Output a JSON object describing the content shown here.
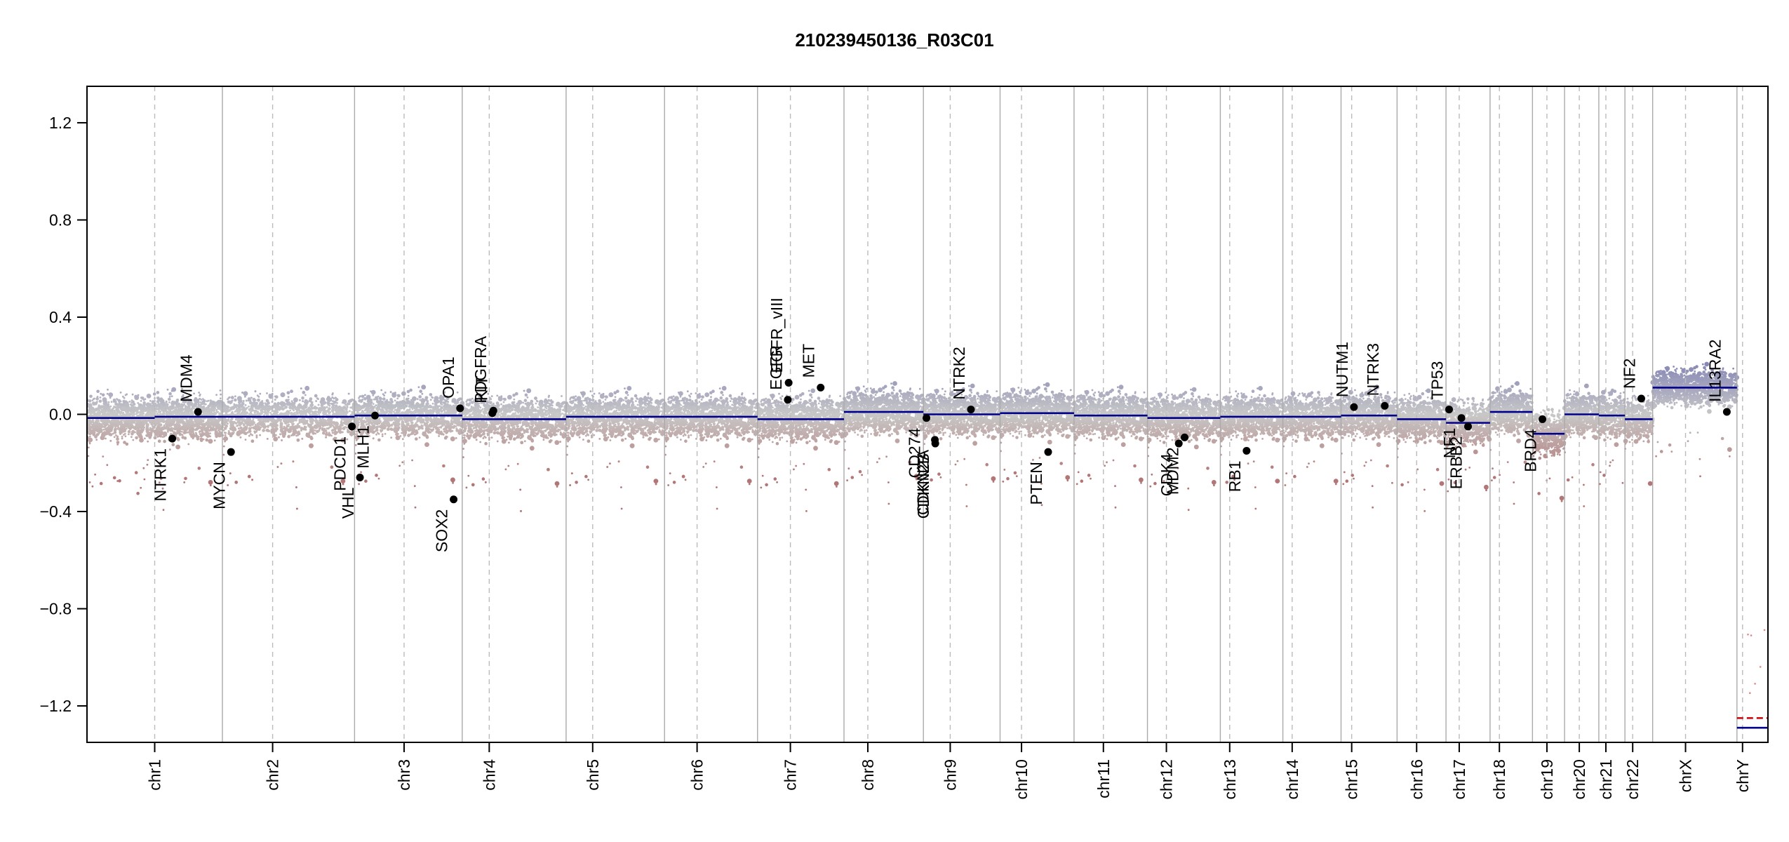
{
  "chart_data": {
    "type": "scatter",
    "title": "210239450136_R03C01",
    "xlabel": "",
    "ylabel": "",
    "ylim": [
      -1.35,
      1.35
    ],
    "y_ticks": [
      -1.2,
      -0.8,
      -0.4,
      0.0,
      0.4,
      0.8,
      1.2
    ],
    "y_tick_labels": [
      "−1.2",
      "−0.8",
      "−0.4",
      "0.0",
      "0.4",
      "0.8",
      "1.2"
    ],
    "grid": false,
    "chromosomes": [
      {
        "name": "chr1",
        "size": 249,
        "cent": 0.5
      },
      {
        "name": "chr2",
        "size": 243,
        "cent": 0.38
      },
      {
        "name": "chr3",
        "size": 198,
        "cent": 0.46
      },
      {
        "name": "chr4",
        "size": 191,
        "cent": 0.26
      },
      {
        "name": "chr5",
        "size": 181,
        "cent": 0.27
      },
      {
        "name": "chr6",
        "size": 171,
        "cent": 0.35
      },
      {
        "name": "chr7",
        "size": 159,
        "cent": 0.38
      },
      {
        "name": "chr8",
        "size": 146,
        "cent": 0.3
      },
      {
        "name": "chr9",
        "size": 141,
        "cent": 0.35
      },
      {
        "name": "chr10",
        "size": 136,
        "cent": 0.29
      },
      {
        "name": "chr11",
        "size": 135,
        "cent": 0.4
      },
      {
        "name": "chr12",
        "size": 134,
        "cent": 0.26
      },
      {
        "name": "chr13",
        "size": 115,
        "cent": 0.15
      },
      {
        "name": "chr14",
        "size": 107,
        "cent": 0.16
      },
      {
        "name": "chr15",
        "size": 103,
        "cent": 0.19
      },
      {
        "name": "chr16",
        "size": 90,
        "cent": 0.4
      },
      {
        "name": "chr17",
        "size": 81,
        "cent": 0.3
      },
      {
        "name": "chr18",
        "size": 78,
        "cent": 0.22
      },
      {
        "name": "chr19",
        "size": 59,
        "cent": 0.45
      },
      {
        "name": "chr20",
        "size": 63,
        "cent": 0.43
      },
      {
        "name": "chr21",
        "size": 48,
        "cent": 0.27
      },
      {
        "name": "chr22",
        "size": 51,
        "cent": 0.28
      },
      {
        "name": "chrX",
        "size": 155,
        "cent": 0.39
      },
      {
        "name": "chrY",
        "size": 57,
        "cent": 0.18
      }
    ],
    "segments": [
      {
        "chr": "chr1",
        "from": 0.0,
        "to": 0.5,
        "value": -0.015
      },
      {
        "chr": "chr1",
        "from": 0.5,
        "to": 1.0,
        "value": -0.01
      },
      {
        "chr": "chr2",
        "from": 0.0,
        "to": 1.0,
        "value": -0.01
      },
      {
        "chr": "chr3",
        "from": 0.0,
        "to": 1.0,
        "value": -0.005
      },
      {
        "chr": "chr4",
        "from": 0.0,
        "to": 1.0,
        "value": -0.02
      },
      {
        "chr": "chr5",
        "from": 0.0,
        "to": 1.0,
        "value": -0.01
      },
      {
        "chr": "chr6",
        "from": 0.0,
        "to": 1.0,
        "value": -0.01
      },
      {
        "chr": "chr7",
        "from": 0.0,
        "to": 1.0,
        "value": -0.02
      },
      {
        "chr": "chr8",
        "from": 0.0,
        "to": 1.0,
        "value": 0.01
      },
      {
        "chr": "chr9",
        "from": 0.0,
        "to": 1.0,
        "value": 0.0
      },
      {
        "chr": "chr10",
        "from": 0.0,
        "to": 1.0,
        "value": 0.005
      },
      {
        "chr": "chr11",
        "from": 0.0,
        "to": 1.0,
        "value": -0.005
      },
      {
        "chr": "chr12",
        "from": 0.0,
        "to": 1.0,
        "value": -0.015
      },
      {
        "chr": "chr13",
        "from": 0.0,
        "to": 1.0,
        "value": -0.01
      },
      {
        "chr": "chr14",
        "from": 0.0,
        "to": 1.0,
        "value": -0.01
      },
      {
        "chr": "chr15",
        "from": 0.0,
        "to": 1.0,
        "value": -0.005
      },
      {
        "chr": "chr16",
        "from": 0.0,
        "to": 1.0,
        "value": -0.02
      },
      {
        "chr": "chr17",
        "from": 0.0,
        "to": 1.0,
        "value": -0.035
      },
      {
        "chr": "chr18",
        "from": 0.0,
        "to": 1.0,
        "value": 0.01
      },
      {
        "chr": "chr19",
        "from": 0.0,
        "to": 1.0,
        "value": -0.08
      },
      {
        "chr": "chr20",
        "from": 0.0,
        "to": 1.0,
        "value": 0.0
      },
      {
        "chr": "chr21",
        "from": 0.0,
        "to": 1.0,
        "value": -0.005
      },
      {
        "chr": "chr22",
        "from": 0.0,
        "to": 1.0,
        "value": -0.02
      },
      {
        "chr": "chrX",
        "from": 0.0,
        "to": 1.0,
        "value": 0.11
      },
      {
        "chr": "chrY",
        "from": 0.0,
        "to": 1.0,
        "value": -1.29,
        "color": "#00008b"
      },
      {
        "chr": "chrY",
        "from": 0.0,
        "to": 1.0,
        "value": -1.25,
        "color": "#cc0000",
        "dashed": true
      }
    ],
    "genes": [
      {
        "name": "NTRK1",
        "chr": "chr1",
        "pos": 0.63,
        "value": -0.1,
        "side": "below"
      },
      {
        "name": "MDM4",
        "chr": "chr1",
        "pos": 0.82,
        "value": 0.01,
        "side": "above"
      },
      {
        "name": "MYCN",
        "chr": "chr2",
        "pos": 0.065,
        "value": -0.155,
        "side": "below"
      },
      {
        "name": "VHL",
        "chr": "chr3",
        "pos": 0.05,
        "value": -0.26,
        "side": "below"
      },
      {
        "name": "PDCD1",
        "chr": "chr2",
        "pos": 0.98,
        "value": -0.05,
        "side": "below"
      },
      {
        "name": "MLH1",
        "chr": "chr3",
        "pos": 0.19,
        "value": -0.005,
        "side": "below"
      },
      {
        "name": "SOX2",
        "chr": "chr3",
        "pos": 0.92,
        "value": -0.35,
        "side": "below"
      },
      {
        "name": "OPA1",
        "chr": "chr3",
        "pos": 0.98,
        "value": 0.025,
        "side": "above"
      },
      {
        "name": "PDGFRA",
        "chr": "chr4",
        "pos": 0.29,
        "value": 0.005,
        "side": "above"
      },
      {
        "name": "KIT",
        "chr": "chr4",
        "pos": 0.3,
        "value": 0.015,
        "side": "above"
      },
      {
        "name": "EGFR",
        "chr": "chr7",
        "pos": 0.35,
        "value": 0.06,
        "side": "above"
      },
      {
        "name": "EGFR_vIII",
        "chr": "chr7",
        "pos": 0.36,
        "value": 0.13,
        "side": "above"
      },
      {
        "name": "MET",
        "chr": "chr7",
        "pos": 0.73,
        "value": 0.11,
        "side": "above"
      },
      {
        "name": "CD274",
        "chr": "chr9",
        "pos": 0.04,
        "value": -0.015,
        "side": "below"
      },
      {
        "name": "CDKN2A",
        "chr": "chr9",
        "pos": 0.15,
        "value": -0.105,
        "side": "below"
      },
      {
        "name": "CDKN2B",
        "chr": "chr9",
        "pos": 0.155,
        "value": -0.12,
        "side": "below"
      },
      {
        "name": "NTRK2",
        "chr": "chr9",
        "pos": 0.62,
        "value": 0.02,
        "side": "above"
      },
      {
        "name": "PTEN",
        "chr": "chr10",
        "pos": 0.65,
        "value": -0.155,
        "side": "below"
      },
      {
        "name": "CDK4",
        "chr": "chr12",
        "pos": 0.43,
        "value": -0.12,
        "side": "below"
      },
      {
        "name": "MDM2",
        "chr": "chr12",
        "pos": 0.51,
        "value": -0.095,
        "side": "below"
      },
      {
        "name": "RB1",
        "chr": "chr13",
        "pos": 0.42,
        "value": -0.15,
        "side": "below"
      },
      {
        "name": "NUTM1",
        "chr": "chr15",
        "pos": 0.23,
        "value": 0.03,
        "side": "above"
      },
      {
        "name": "NTRK3",
        "chr": "chr15",
        "pos": 0.78,
        "value": 0.035,
        "side": "above"
      },
      {
        "name": "TP53",
        "chr": "chr17",
        "pos": 0.07,
        "value": 0.02,
        "side": "above"
      },
      {
        "name": "NF1",
        "chr": "chr17",
        "pos": 0.35,
        "value": -0.015,
        "side": "below"
      },
      {
        "name": "ERBB2",
        "chr": "chr17",
        "pos": 0.5,
        "value": -0.05,
        "side": "below"
      },
      {
        "name": "BRD4",
        "chr": "chr19",
        "pos": 0.31,
        "value": -0.02,
        "side": "below"
      },
      {
        "name": "NF2",
        "chr": "chr22",
        "pos": 0.59,
        "value": 0.065,
        "side": "above"
      },
      {
        "name": "IL13RA2",
        "chrX": true,
        "chr": "chrX",
        "pos": 0.88,
        "value": 0.01,
        "side": "above"
      }
    ]
  }
}
